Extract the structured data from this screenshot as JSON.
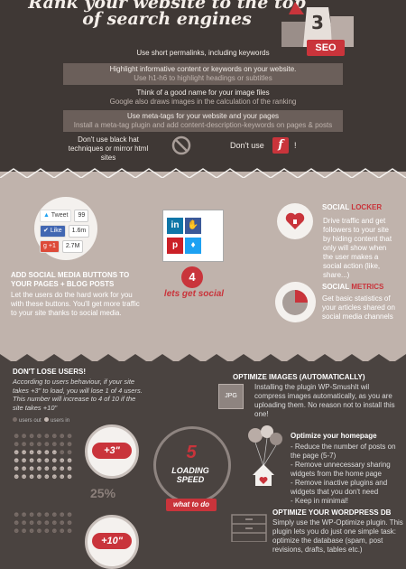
{
  "seo": {
    "title_line1": "Rank your website to the top",
    "title_line2": "of search engines",
    "badge": "SEO",
    "tip1": "Use short permalinks, including keywords",
    "tip2": "Highlight informative content or keywords on your website.",
    "tip2_sub": "Use h1-h6 to highlight headings or subtitles",
    "tip3": "Think of a good name for your image files",
    "tip3_sub": "Google also draws images in the calculation of the ranking",
    "tip4": "Use meta-tags for your website and your pages",
    "tip4_sub": "Install a meta-tag plugin and add content-description-keywords on pages & posts",
    "dont1": "Don't use black hat techniques or mirror html sites",
    "dont2": "Don't use",
    "flash_icon": "f",
    "excl": "!"
  },
  "social": {
    "tweet_label": "Tweet",
    "tweet_count": "99",
    "like_label": "Like",
    "like_count": "1.6m",
    "plus_label": "+1",
    "plus_count": "2.7M",
    "heading": "ADD SOCIAL MEDIA BUTTONS TO YOUR PAGES + BLOG POSTS",
    "text": "Let the users do the hard work for you with these buttons. You'll get more traffic to your site thanks to social media.",
    "bubble": "4",
    "lets_social": "lets get social",
    "locker_head_a": "SOCIAL",
    "locker_head_b": "LOCKER",
    "locker_text": "Drive traffic and get followers to your site by hiding content that only will show when the user makes a social action (like, share...)",
    "metrics_head_a": "SOCIAL",
    "metrics_head_b": "METRICS",
    "metrics_text": "Get basic statistics of your articles shared on social media channels"
  },
  "speed": {
    "lose_head": "DON'T LOSE USERS!",
    "lose_text": "According to users behaviour, if your site takes +3\" to load, you will lose 1 of 4 users. This number will increase to 4 of 10 if the site takes +10\"",
    "legend_out": "users out",
    "legend_in": "users in",
    "pct1": "25%",
    "watch1": "+3\"",
    "watch2": "+10\"",
    "big_number": "5",
    "loading": "LOADING SPEED",
    "todo": "what to do",
    "opt_img_icon": "JPG",
    "opt_img_head": "OPTIMIZE IMAGES (AUTOMATICALLY)",
    "opt_img_text": "Installing the plugin WP-SmushIt wil compress images automatically, as you are uploading them. No reason not to install this one!",
    "opt_home_head": "Optimize your homepage",
    "opt_home_text": "- Reduce the number of posts on the page (5-7)\n- Remove unnecessary sharing widgets from the home page\n- Remove inactive plugins and widgets that you don't need\n- Keep in minimal!",
    "db_head": "OPTIMIZE YOUR WORDPRESS DB",
    "db_text": "Simply use the WP-Optimize plugin. This plugin lets you do just one simple task: optimize the database (spam, post revisions, drafts, tables etc.)"
  },
  "colors": {
    "red": "#c9343b",
    "dark": "#3f3835",
    "taupe": "#c0b3ac"
  }
}
